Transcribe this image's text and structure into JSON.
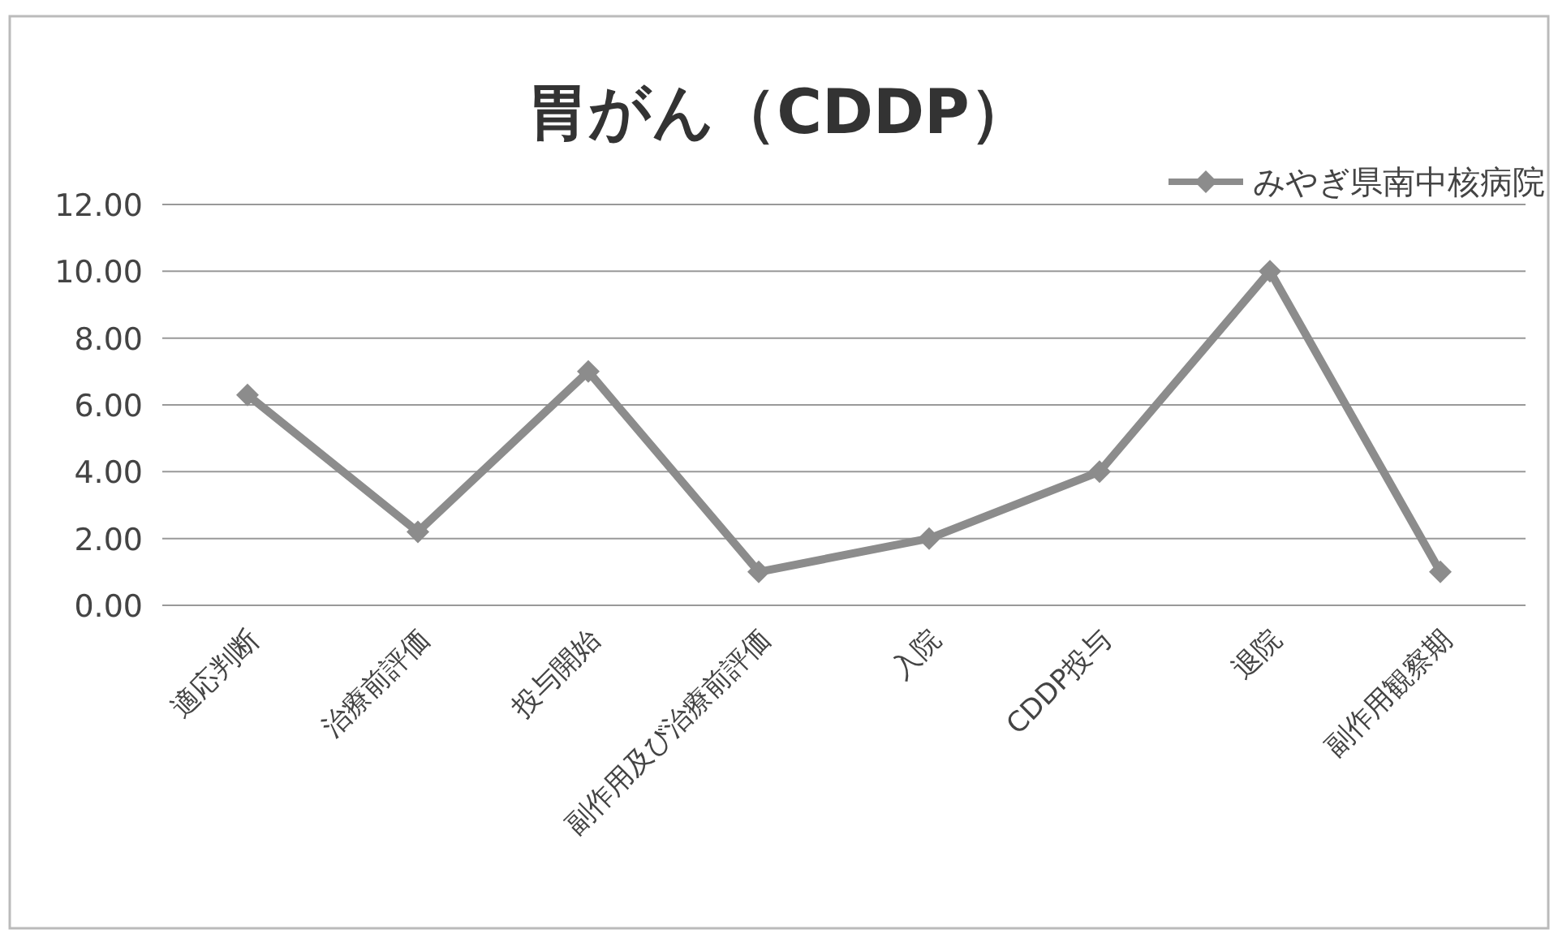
{
  "chart_data": {
    "type": "line",
    "title": "胃がん（CDDP）",
    "categories": [
      "適応判断",
      "治療前評価",
      "投与開始",
      "副作用及び治療前評価",
      "入院",
      "CDDP投与",
      "退院",
      "副作用観察期"
    ],
    "series": [
      {
        "name": "みやぎ県南中核病院",
        "color": "#8c8c8c",
        "values": [
          6.3,
          2.2,
          7.0,
          1.0,
          2.0,
          4.0,
          10.0,
          1.0
        ]
      }
    ],
    "ylim": [
      0,
      12
    ],
    "yticks": [
      {
        "value": 0,
        "label": "0.00"
      },
      {
        "value": 2,
        "label": "2.00"
      },
      {
        "value": 4,
        "label": "4.00"
      },
      {
        "value": 6,
        "label": "6.00"
      },
      {
        "value": 8,
        "label": "8.00"
      },
      {
        "value": 10,
        "label": "10.00"
      },
      {
        "value": 12,
        "label": "12.00"
      }
    ],
    "grid": "y",
    "legend": "top right",
    "marker": "diamond",
    "line_style": "solid"
  }
}
